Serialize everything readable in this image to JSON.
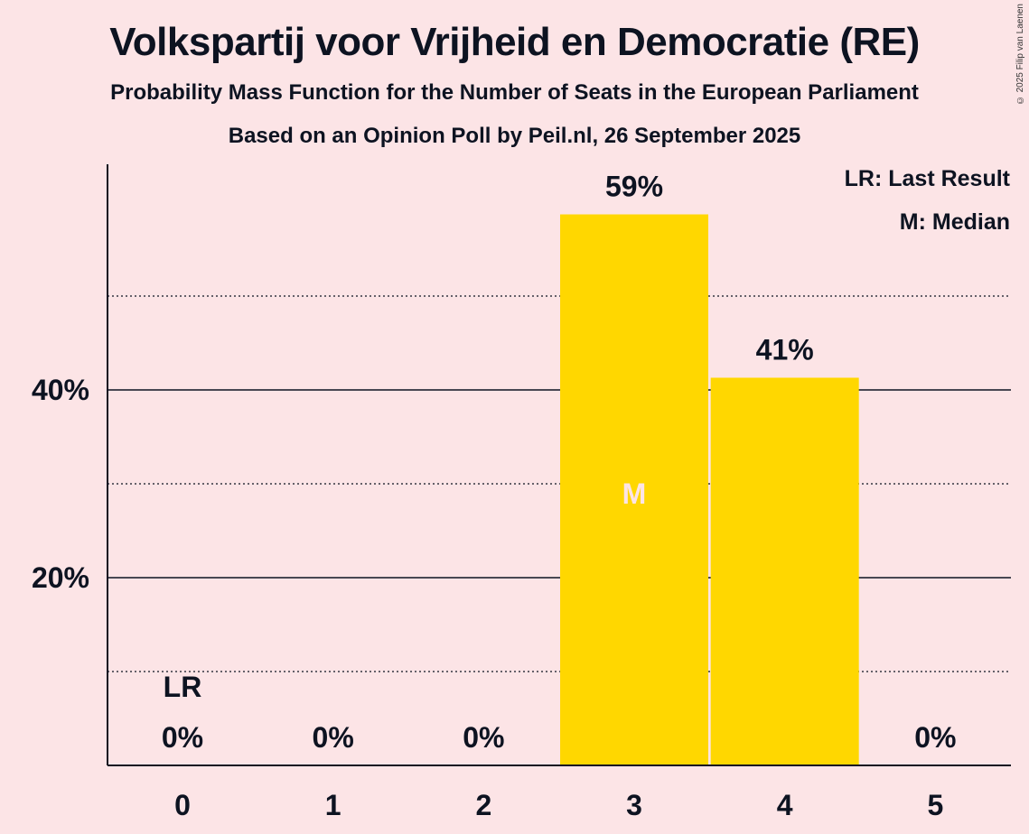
{
  "header": {
    "title": "Volkspartij voor Vrijheid en Democratie (RE)",
    "subtitle": "Probability Mass Function for the Number of Seats in the European Parliament",
    "source": "Based on an Opinion Poll by Peil.nl, 26 September 2025",
    "copyright": "© 2025 Filip van Laenen"
  },
  "legend": {
    "last_result": "LR: Last Result",
    "median": "M: Median"
  },
  "chart_data": {
    "type": "bar",
    "categories": [
      "0",
      "1",
      "2",
      "3",
      "4",
      "5"
    ],
    "values": [
      0,
      0,
      0,
      58.7,
      41.3,
      0
    ],
    "value_labels": [
      "0%",
      "0%",
      "0%",
      "59%",
      "41%",
      "0%"
    ],
    "ylim": [
      0,
      64
    ],
    "y_major_ticks": [
      20,
      40
    ],
    "y_major_tick_labels": [
      "20%",
      "40%"
    ],
    "y_minor_gridlines": [
      10,
      30,
      50
    ],
    "last_result_index": 0,
    "last_result_label": "LR",
    "median_index": 3,
    "median_label": "M",
    "bar_color": "#ffd700",
    "median_text_color": "#fce4e6"
  }
}
